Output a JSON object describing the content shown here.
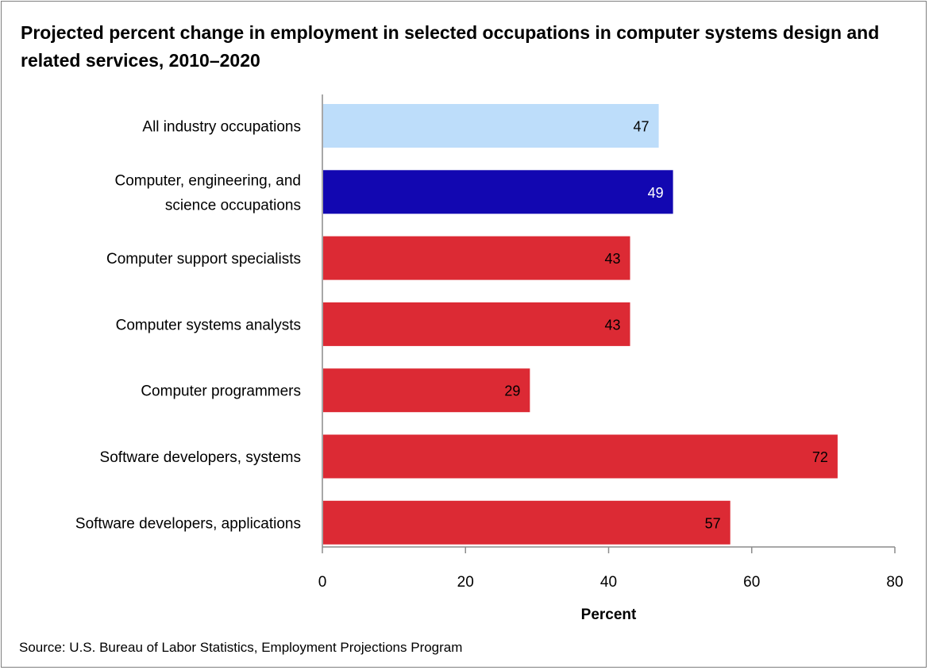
{
  "chart_data": {
    "type": "bar",
    "orientation": "horizontal",
    "title": "Projected percent change in employment in selected occupations in computer systems design and related services, 2010–2020",
    "categories": [
      "All industry occupations",
      "Computer, engineering, and science occupations",
      "Computer support specialists",
      "Computer systems analysts",
      "Computer programmers",
      "Software developers, systems",
      "Software developers, applications"
    ],
    "category_lines": [
      [
        "All industry occupations"
      ],
      [
        "Computer, engineering, and",
        "science occupations"
      ],
      [
        "Computer support specialists"
      ],
      [
        "Computer systems analysts"
      ],
      [
        "Computer programmers"
      ],
      [
        "Software developers, systems"
      ],
      [
        "Software developers, applications"
      ]
    ],
    "values": [
      47,
      49,
      43,
      43,
      29,
      72,
      57
    ],
    "value_labels": [
      "47",
      "49",
      "43",
      "43",
      "29",
      "72",
      "57"
    ],
    "bar_colors": [
      "#bdddfa",
      "#1207b1",
      "#dc2a34",
      "#dc2a34",
      "#dc2a34",
      "#dc2a34",
      "#dc2a34"
    ],
    "label_colors": [
      "#000000",
      "#ffffff",
      "#000000",
      "#000000",
      "#000000",
      "#000000",
      "#000000"
    ],
    "xlabel": "Percent",
    "ylabel": "",
    "xlim": [
      0,
      80
    ],
    "xticks": [
      0,
      20,
      40,
      60,
      80
    ],
    "xtick_labels": [
      "0",
      "20",
      "40",
      "60",
      "80"
    ],
    "grid": false,
    "legend": "none"
  },
  "source": "Source: U.S. Bureau of Labor Statistics, Employment Projections Program",
  "colors": {
    "axis": "#8c8c8c",
    "frame": "#7f7f7f",
    "background": "#ffffff"
  }
}
